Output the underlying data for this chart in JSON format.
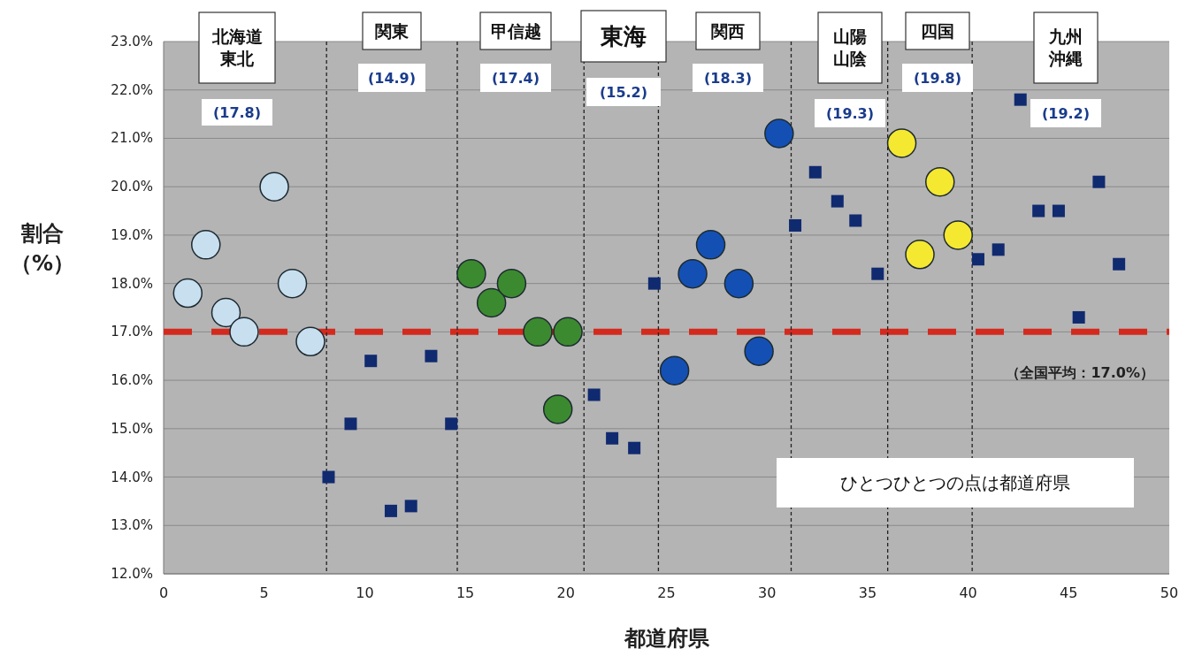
{
  "chart_data": {
    "type": "scatter",
    "xlabel": "都道府県",
    "ylabel": "割合（%）",
    "xlim": [
      0,
      50
    ],
    "xticks": [
      0,
      5,
      10,
      15,
      20,
      25,
      30,
      35,
      40,
      45,
      50
    ],
    "ylim": [
      12,
      23
    ],
    "yticks": [
      {
        "value": 12,
        "label": "12.0%"
      },
      {
        "value": 13,
        "label": "13.0%"
      },
      {
        "value": 14,
        "label": "14.0%"
      },
      {
        "value": 15,
        "label": "15.0%"
      },
      {
        "value": 16,
        "label": "16.0%"
      },
      {
        "value": 17,
        "label": "17.0%"
      },
      {
        "value": 18,
        "label": "18.0%"
      },
      {
        "value": 19,
        "label": "19.0%"
      },
      {
        "value": 20,
        "label": "20.0%"
      },
      {
        "value": 21,
        "label": "21.0%"
      },
      {
        "value": 22,
        "label": "22.0%"
      },
      {
        "value": 23,
        "label": "23.0%"
      }
    ],
    "grid": "y",
    "series": [
      {
        "color": "#c8dff0",
        "marker": "circle",
        "x": [
          1.2,
          2.1,
          3.1,
          4.0,
          5.5,
          6.4,
          7.3
        ],
        "values": [
          17.8,
          18.8,
          17.4,
          17.0,
          20.0,
          18.0,
          16.8
        ]
      },
      {
        "color": "#3c8a30",
        "marker": "circle",
        "x": [
          15.3,
          16.3,
          17.3,
          18.6,
          19.6,
          20.1
        ],
        "values": [
          18.2,
          17.6,
          18.0,
          17.0,
          15.4,
          17.0
        ]
      },
      {
        "color": "#1450b4",
        "marker": "circle",
        "x": [
          25.4,
          26.3,
          27.2,
          28.6,
          29.6,
          30.6
        ],
        "values": [
          16.2,
          18.2,
          18.8,
          18.0,
          16.6,
          21.1
        ]
      },
      {
        "color": "#f5e830",
        "marker": "circle",
        "x": [
          36.7,
          37.6,
          38.6,
          39.5
        ],
        "values": [
          20.9,
          18.6,
          20.1,
          19.0
        ]
      },
      {
        "color": "#102a70",
        "marker": "square",
        "x": [
          8.2,
          9.3,
          10.3,
          11.3,
          12.3,
          13.3,
          14.3,
          21.4,
          22.3,
          23.4,
          24.4,
          31.4,
          32.4,
          33.5,
          34.4,
          35.5,
          40.5,
          41.5,
          42.6,
          43.5,
          44.5,
          45.5,
          46.5,
          47.5
        ],
        "values": [
          14.0,
          15.1,
          16.4,
          13.3,
          13.4,
          16.5,
          15.1,
          15.7,
          14.8,
          14.6,
          18.0,
          19.2,
          20.3,
          19.7,
          19.3,
          18.2,
          18.5,
          18.7,
          21.8,
          19.5,
          19.5,
          17.3,
          20.1,
          18.4
        ]
      }
    ],
    "ref_lines": [
      {
        "axis": "y",
        "value": 17.0,
        "label": "（全国平均：17.0%）",
        "color": "#d42a1e",
        "line_style": "dashed"
      },
      {
        "axis": "x",
        "value": 8.1,
        "color": "#222222",
        "line_style": "dotted"
      },
      {
        "axis": "x",
        "value": 14.6,
        "color": "#222222",
        "line_style": "dotted"
      },
      {
        "axis": "x",
        "value": 20.9,
        "color": "#222222",
        "line_style": "dotted"
      },
      {
        "axis": "x",
        "value": 24.6,
        "color": "#222222",
        "line_style": "dotted"
      },
      {
        "axis": "x",
        "value": 31.2,
        "color": "#222222",
        "line_style": "dotted"
      },
      {
        "axis": "x",
        "value": 36.0,
        "color": "#222222",
        "line_style": "dotted"
      },
      {
        "axis": "x",
        "value": 40.2,
        "color": "#222222",
        "line_style": "dotted"
      }
    ],
    "annotations": [
      "北海道東北",
      "(17.8)",
      "関東",
      "(14.9)",
      "甲信越",
      "(17.4)",
      "東海",
      "(15.2)",
      "関西",
      "(18.3)",
      "山陽山陰",
      "(19.3)",
      "四国",
      "(19.8)",
      "九州沖縄",
      "(19.2)",
      "ひとつひとつの点は都道府県"
    ]
  }
}
